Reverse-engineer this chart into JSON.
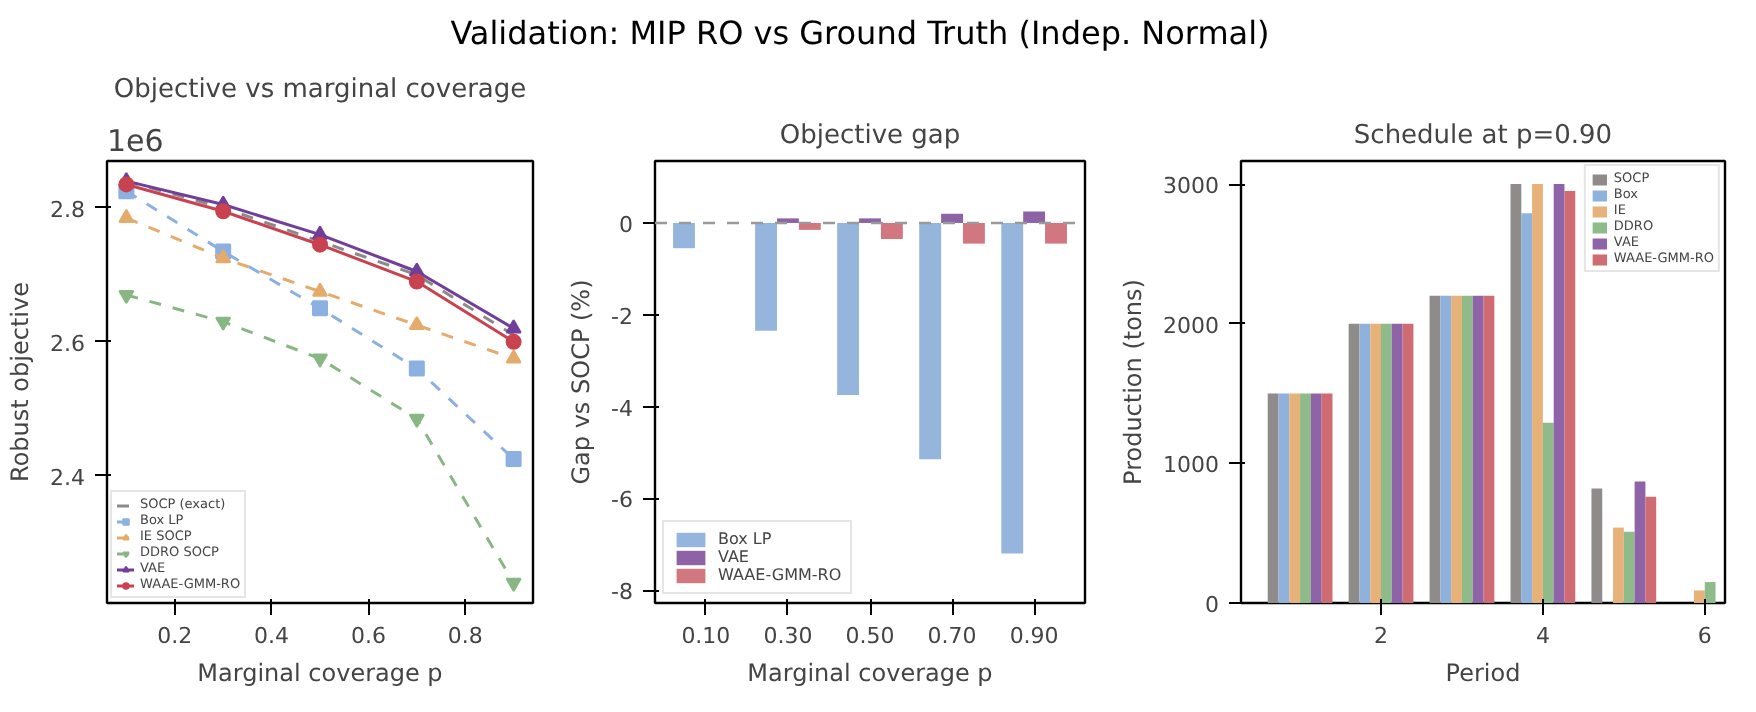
{
  "chart_data": [
    {
      "type": "line",
      "title": "Objective vs marginal coverage",
      "xlabel": "Marginal coverage p",
      "ylabel": "Robust objective",
      "annotations": [
        "Validation: MIP RO vs Ground Truth (Indep. Normal)",
        "1e6"
      ],
      "x": [
        0.1,
        0.3,
        0.5,
        0.7,
        0.9
      ],
      "xlim": [
        0.06,
        0.94
      ],
      "xticks": [
        0.2,
        0.4,
        0.6,
        0.8
      ],
      "ylim": [
        2.21,
        2.87
      ],
      "yticks": [
        2.4,
        2.6,
        2.8
      ],
      "grid": false,
      "legend": "bottom left",
      "series": [
        {
          "name": "SOCP (exact)",
          "color": "#8a8a8a",
          "values": [
            2.84,
            2.8,
            2.75,
            2.7,
            2.61
          ],
          "line_style": "dashed",
          "marker": "none"
        },
        {
          "name": "Box LP",
          "color": "#8cb0e0",
          "values": [
            2.825,
            2.735,
            2.65,
            2.56,
            2.425
          ],
          "line_style": "dashed",
          "marker": "square"
        },
        {
          "name": "IE SOCP",
          "color": "#e5ab6b",
          "values": [
            2.785,
            2.725,
            2.675,
            2.625,
            2.575
          ],
          "line_style": "dashed",
          "marker": "triangle"
        },
        {
          "name": "DDRO SOCP",
          "color": "#88b784",
          "values": [
            2.67,
            2.63,
            2.575,
            2.485,
            2.24
          ],
          "line_style": "dashed",
          "marker": "triangle_down"
        },
        {
          "name": "VAE",
          "color": "#6f3f99",
          "values": [
            2.84,
            2.805,
            2.76,
            2.705,
            2.62
          ],
          "line_style": "solid",
          "marker": "triangle"
        },
        {
          "name": "WAAE-GMM-RO",
          "color": "#c8424f",
          "values": [
            2.835,
            2.795,
            2.745,
            2.69,
            2.6
          ],
          "line_style": "solid",
          "marker": "circle"
        }
      ]
    },
    {
      "type": "bar",
      "title": "Objective gap",
      "xlabel": "Marginal coverage p",
      "ylabel": "Gap vs SOCP (%)",
      "categories": [
        "0.10",
        "0.30",
        "0.50",
        "0.70",
        "0.90"
      ],
      "ylim": [
        -8.28,
        1.35
      ],
      "yticks": [
        -8,
        -6,
        -4,
        -2,
        0
      ],
      "grid": false,
      "legend": "bottom left",
      "ref_lines": [
        {
          "axis": "y",
          "value": 0,
          "color": "#999999",
          "line_style": "dashed"
        }
      ],
      "series": [
        {
          "name": "Box LP",
          "color": "#96b5dd",
          "values": [
            -0.55,
            -2.35,
            -3.75,
            -5.15,
            -7.2
          ]
        },
        {
          "name": "VAE",
          "color": "#8e63a5",
          "values": [
            0,
            0.1,
            0.1,
            0.2,
            0.25
          ]
        },
        {
          "name": "WAAE-GMM-RO",
          "color": "#d27680",
          "values": [
            0,
            -0.15,
            -0.35,
            -0.45,
            -0.45
          ]
        }
      ]
    },
    {
      "type": "bar",
      "title": "Schedule at p=0.90",
      "xlabel": "Period",
      "ylabel": "Production (tons)",
      "x": [
        1,
        2,
        3,
        4,
        5,
        6
      ],
      "xlim": [
        0.27,
        6.25
      ],
      "xticks": [
        2,
        4,
        6
      ],
      "ylim": [
        0,
        3165
      ],
      "yticks": [
        0,
        1000,
        2000,
        3000
      ],
      "grid": false,
      "legend": "top right",
      "series": [
        {
          "name": "SOCP",
          "color": "#8f8b8b",
          "values": [
            1500,
            2000,
            2200,
            3000,
            820,
            0
          ]
        },
        {
          "name": "Box",
          "color": "#8fb2dc",
          "values": [
            1500,
            2000,
            2200,
            2790,
            0,
            0
          ]
        },
        {
          "name": "IE",
          "color": "#e7b27a",
          "values": [
            1500,
            2000,
            2200,
            3000,
            540,
            90
          ]
        },
        {
          "name": "DDRO",
          "color": "#8fba8a",
          "values": [
            1500,
            2000,
            2200,
            1290,
            510,
            150
          ]
        },
        {
          "name": "VAE",
          "color": "#8f63a8",
          "values": [
            1500,
            2000,
            2200,
            3000,
            870,
            0
          ]
        },
        {
          "name": "WAAE-GMM-RO",
          "color": "#cf6b73",
          "values": [
            1500,
            2000,
            2200,
            2950,
            760,
            0
          ]
        }
      ]
    }
  ]
}
